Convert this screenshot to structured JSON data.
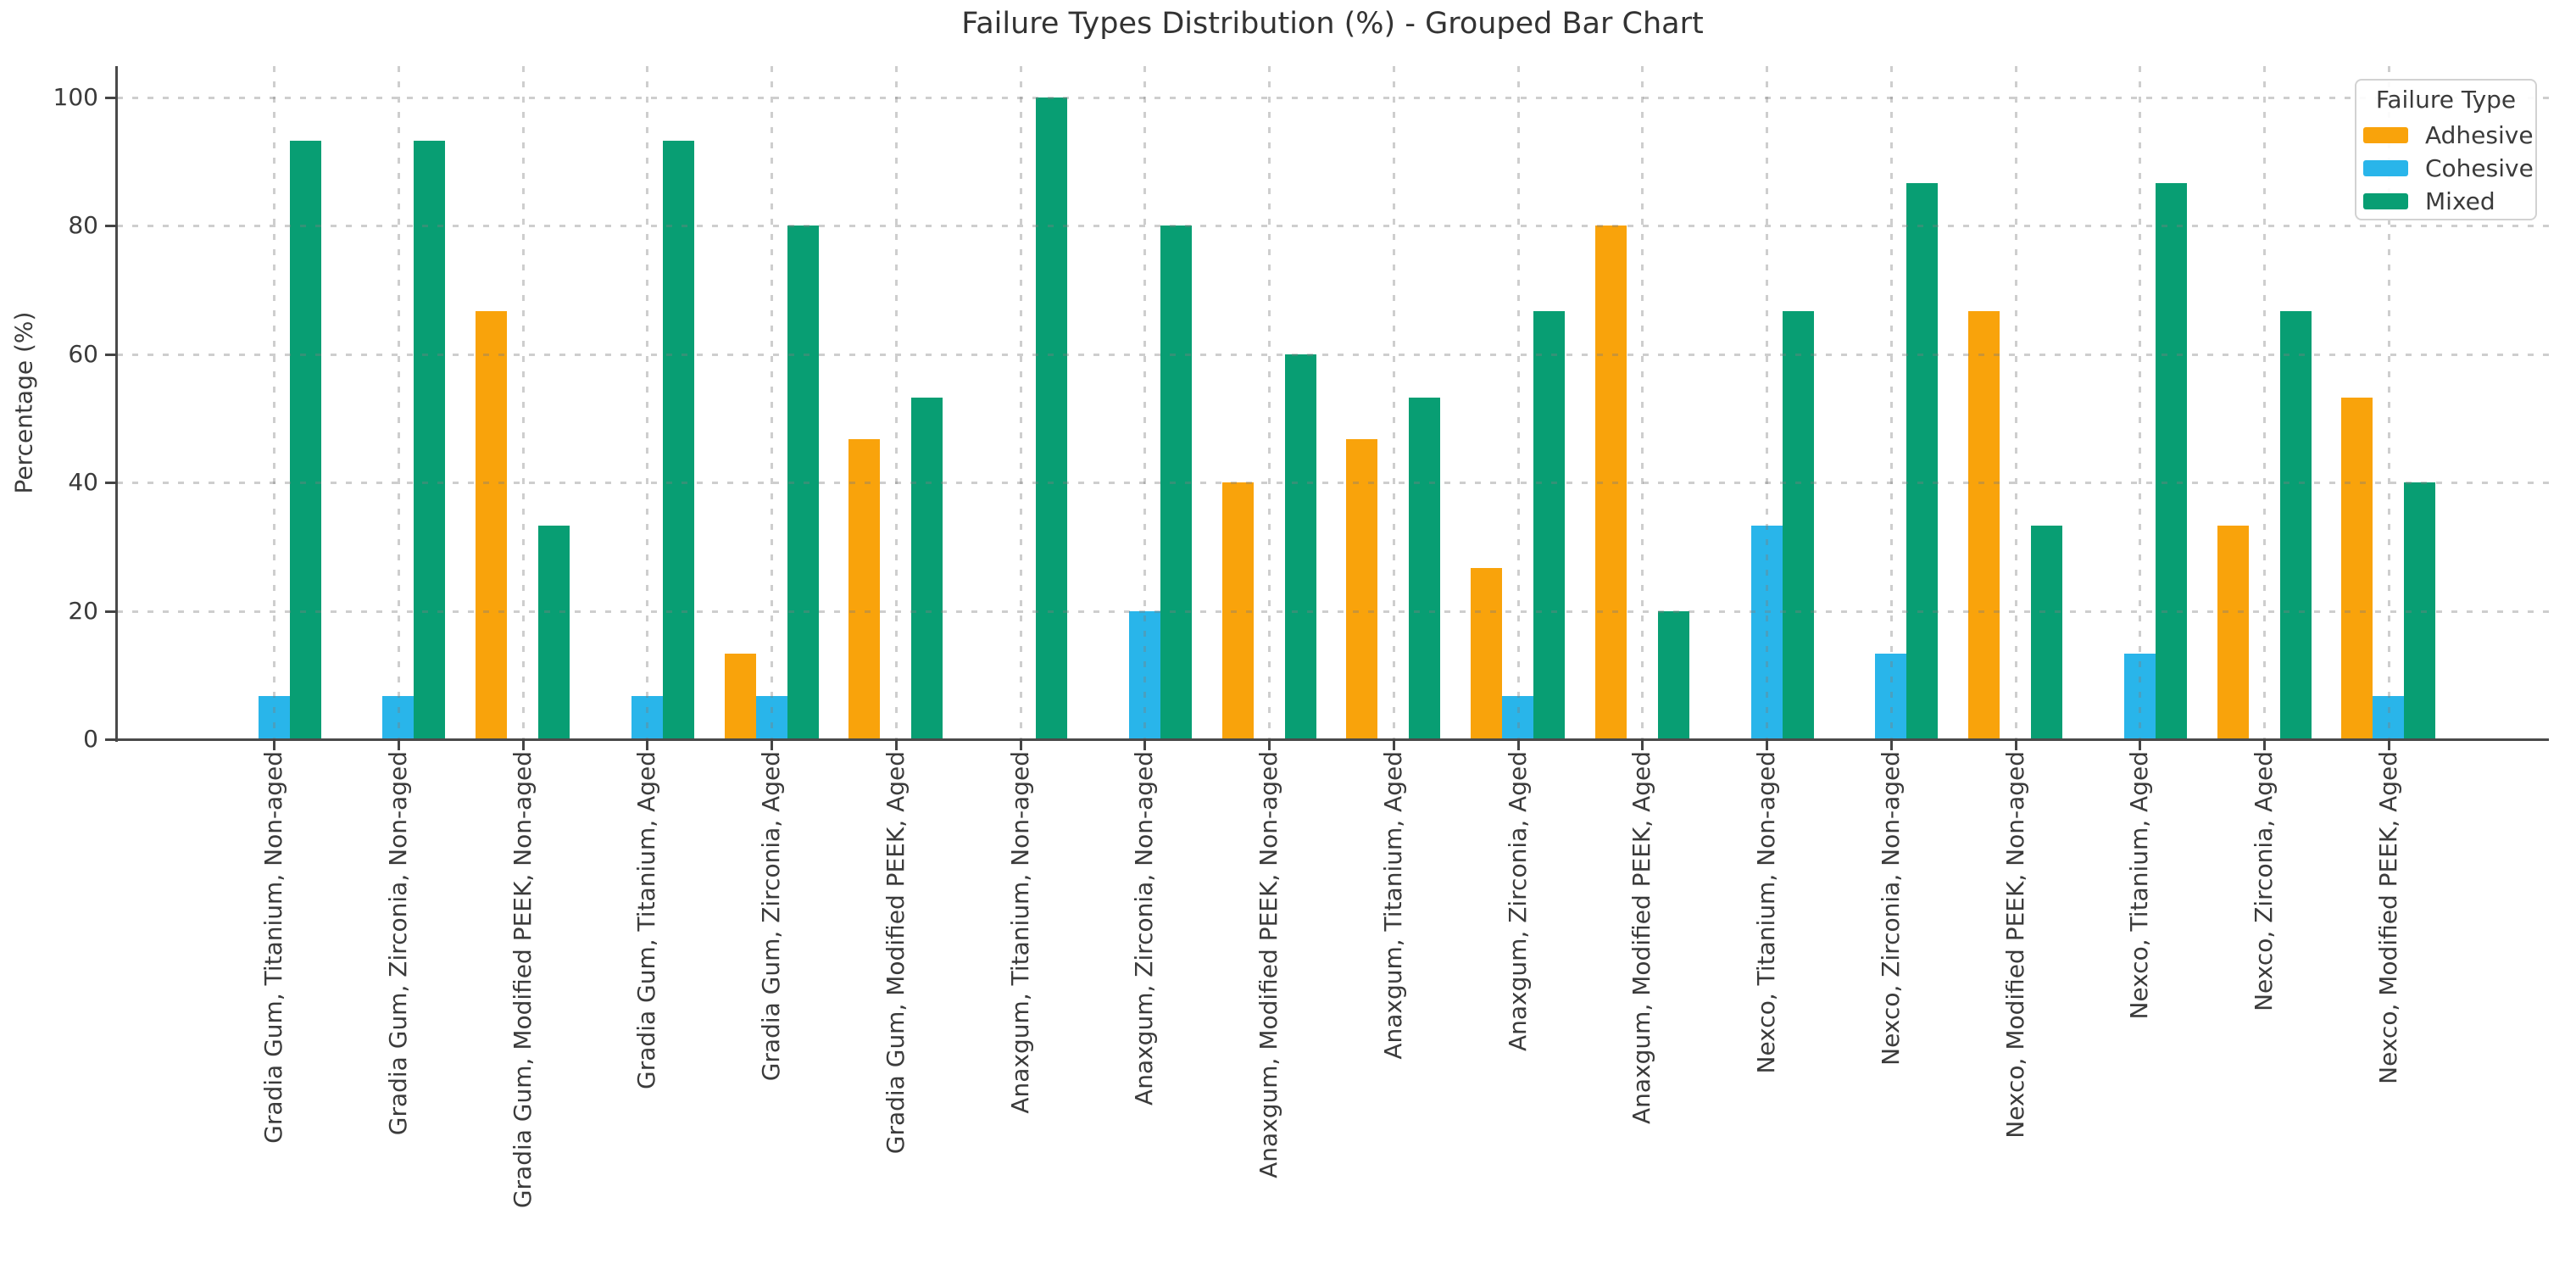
{
  "figure": {
    "title": "Failure Types Distribution (%) - Grouped Bar Chart",
    "background": "#ffffff",
    "text_color": "#3b3b3b",
    "spine_color": "#4a4a4a",
    "grid_color": "#cfcfcf"
  },
  "chart_data": {
    "type": "bar",
    "title": "Failure Types Distribution (%) - Grouped Bar Chart",
    "xlabel": "",
    "ylabel": "Percentage (%)",
    "ylim": [
      0,
      105
    ],
    "yticks": [
      0,
      20,
      40,
      60,
      80,
      100
    ],
    "grid": true,
    "grid_style": "dashed",
    "legend_title": "Failure Type",
    "legend_position": "upper right",
    "bar_layout": "grouped",
    "categories": [
      "Gradia Gum, Titanium, Non-aged",
      "Gradia Gum, Zirconia, Non-aged",
      "Gradia Gum, Modified PEEK, Non-aged",
      "Gradia Gum, Titanium, Aged",
      "Gradia Gum, Zirconia, Aged",
      "Gradia Gum, Modified PEEK, Aged",
      "Anaxgum, Titanium, Non-aged",
      "Anaxgum, Zirconia, Non-aged",
      "Anaxgum, Modified PEEK, Non-aged",
      "Anaxgum, Titanium, Aged",
      "Anaxgum, Zirconia, Aged",
      "Anaxgum, Modified PEEK, Aged",
      "Nexco, Titanium, Non-aged",
      "Nexco, Zirconia, Non-aged",
      "Nexco, Modified PEEK, Non-aged",
      "Nexco, Titanium, Aged",
      "Nexco, Zirconia, Aged",
      "Nexco, Modified PEEK, Aged"
    ],
    "series": [
      {
        "name": "Adhesive",
        "color": "#F9A30B",
        "values": [
          0,
          0,
          66.7,
          0,
          13.3,
          46.7,
          0,
          0,
          40,
          46.7,
          26.7,
          80,
          0,
          0,
          66.7,
          0,
          33.3,
          53.3
        ]
      },
      {
        "name": "Cohesive",
        "color": "#29B5EA",
        "values": [
          6.7,
          6.7,
          0,
          6.7,
          6.7,
          0,
          0,
          20,
          0,
          0,
          6.7,
          0,
          33.3,
          13.3,
          0,
          13.3,
          0,
          6.7
        ]
      },
      {
        "name": "Mixed",
        "color": "#089E73",
        "values": [
          93.3,
          93.3,
          33.3,
          93.3,
          80,
          53.3,
          100,
          80,
          60,
          53.3,
          66.7,
          20,
          66.7,
          86.7,
          33.3,
          86.7,
          66.7,
          40
        ]
      }
    ]
  }
}
